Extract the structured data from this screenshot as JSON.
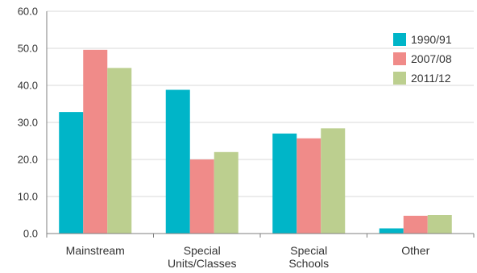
{
  "chart_data": {
    "type": "bar",
    "categories": [
      [
        "Mainstream"
      ],
      [
        "Special",
        "Units/Classes"
      ],
      [
        "Special",
        "Schools"
      ],
      [
        "Other"
      ]
    ],
    "series": [
      {
        "name": "1990/91",
        "color": "#00b5c8",
        "values": [
          32.8,
          38.8,
          27.0,
          1.4
        ]
      },
      {
        "name": "2007/08",
        "color": "#f08b89",
        "values": [
          49.6,
          20.0,
          25.7,
          4.8
        ]
      },
      {
        "name": "2011/12",
        "color": "#bccf8f",
        "values": [
          44.7,
          22.0,
          28.4,
          5.0
        ]
      }
    ],
    "ylim": [
      0,
      60
    ],
    "yticks": [
      "0.0",
      "10.0",
      "20.0",
      "30.0",
      "40.0",
      "50.0",
      "60.0"
    ],
    "grid": true,
    "legend_position": "top-right",
    "title": "",
    "xlabel": "",
    "ylabel": ""
  }
}
